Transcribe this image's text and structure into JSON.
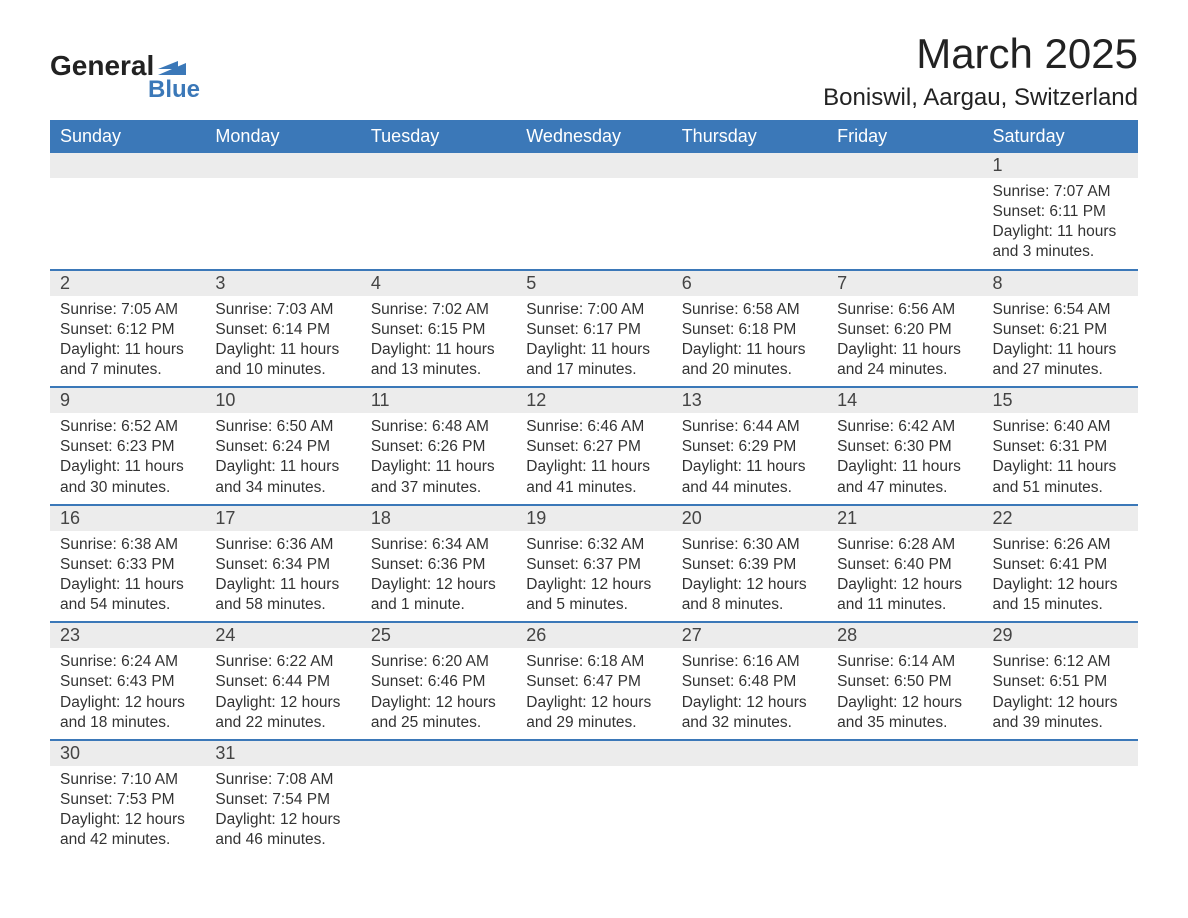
{
  "logo": {
    "brand1": "General",
    "brand2": "Blue",
    "flag_color": "#3b78b8"
  },
  "header": {
    "month": "March 2025",
    "location": "Boniswil, Aargau, Switzerland"
  },
  "calendar": {
    "day_headers": [
      "Sunday",
      "Monday",
      "Tuesday",
      "Wednesday",
      "Thursday",
      "Friday",
      "Saturday"
    ],
    "header_bg": "#3b78b8",
    "header_fg": "#ffffff",
    "row_separator_color": "#3b78b8",
    "daynum_bg": "#ececec",
    "weeks": [
      [
        null,
        null,
        null,
        null,
        null,
        null,
        {
          "n": "1",
          "sunrise": "Sunrise: 7:07 AM",
          "sunset": "Sunset: 6:11 PM",
          "dl1": "Daylight: 11 hours",
          "dl2": "and 3 minutes."
        }
      ],
      [
        {
          "n": "2",
          "sunrise": "Sunrise: 7:05 AM",
          "sunset": "Sunset: 6:12 PM",
          "dl1": "Daylight: 11 hours",
          "dl2": "and 7 minutes."
        },
        {
          "n": "3",
          "sunrise": "Sunrise: 7:03 AM",
          "sunset": "Sunset: 6:14 PM",
          "dl1": "Daylight: 11 hours",
          "dl2": "and 10 minutes."
        },
        {
          "n": "4",
          "sunrise": "Sunrise: 7:02 AM",
          "sunset": "Sunset: 6:15 PM",
          "dl1": "Daylight: 11 hours",
          "dl2": "and 13 minutes."
        },
        {
          "n": "5",
          "sunrise": "Sunrise: 7:00 AM",
          "sunset": "Sunset: 6:17 PM",
          "dl1": "Daylight: 11 hours",
          "dl2": "and 17 minutes."
        },
        {
          "n": "6",
          "sunrise": "Sunrise: 6:58 AM",
          "sunset": "Sunset: 6:18 PM",
          "dl1": "Daylight: 11 hours",
          "dl2": "and 20 minutes."
        },
        {
          "n": "7",
          "sunrise": "Sunrise: 6:56 AM",
          "sunset": "Sunset: 6:20 PM",
          "dl1": "Daylight: 11 hours",
          "dl2": "and 24 minutes."
        },
        {
          "n": "8",
          "sunrise": "Sunrise: 6:54 AM",
          "sunset": "Sunset: 6:21 PM",
          "dl1": "Daylight: 11 hours",
          "dl2": "and 27 minutes."
        }
      ],
      [
        {
          "n": "9",
          "sunrise": "Sunrise: 6:52 AM",
          "sunset": "Sunset: 6:23 PM",
          "dl1": "Daylight: 11 hours",
          "dl2": "and 30 minutes."
        },
        {
          "n": "10",
          "sunrise": "Sunrise: 6:50 AM",
          "sunset": "Sunset: 6:24 PM",
          "dl1": "Daylight: 11 hours",
          "dl2": "and 34 minutes."
        },
        {
          "n": "11",
          "sunrise": "Sunrise: 6:48 AM",
          "sunset": "Sunset: 6:26 PM",
          "dl1": "Daylight: 11 hours",
          "dl2": "and 37 minutes."
        },
        {
          "n": "12",
          "sunrise": "Sunrise: 6:46 AM",
          "sunset": "Sunset: 6:27 PM",
          "dl1": "Daylight: 11 hours",
          "dl2": "and 41 minutes."
        },
        {
          "n": "13",
          "sunrise": "Sunrise: 6:44 AM",
          "sunset": "Sunset: 6:29 PM",
          "dl1": "Daylight: 11 hours",
          "dl2": "and 44 minutes."
        },
        {
          "n": "14",
          "sunrise": "Sunrise: 6:42 AM",
          "sunset": "Sunset: 6:30 PM",
          "dl1": "Daylight: 11 hours",
          "dl2": "and 47 minutes."
        },
        {
          "n": "15",
          "sunrise": "Sunrise: 6:40 AM",
          "sunset": "Sunset: 6:31 PM",
          "dl1": "Daylight: 11 hours",
          "dl2": "and 51 minutes."
        }
      ],
      [
        {
          "n": "16",
          "sunrise": "Sunrise: 6:38 AM",
          "sunset": "Sunset: 6:33 PM",
          "dl1": "Daylight: 11 hours",
          "dl2": "and 54 minutes."
        },
        {
          "n": "17",
          "sunrise": "Sunrise: 6:36 AM",
          "sunset": "Sunset: 6:34 PM",
          "dl1": "Daylight: 11 hours",
          "dl2": "and 58 minutes."
        },
        {
          "n": "18",
          "sunrise": "Sunrise: 6:34 AM",
          "sunset": "Sunset: 6:36 PM",
          "dl1": "Daylight: 12 hours",
          "dl2": "and 1 minute."
        },
        {
          "n": "19",
          "sunrise": "Sunrise: 6:32 AM",
          "sunset": "Sunset: 6:37 PM",
          "dl1": "Daylight: 12 hours",
          "dl2": "and 5 minutes."
        },
        {
          "n": "20",
          "sunrise": "Sunrise: 6:30 AM",
          "sunset": "Sunset: 6:39 PM",
          "dl1": "Daylight: 12 hours",
          "dl2": "and 8 minutes."
        },
        {
          "n": "21",
          "sunrise": "Sunrise: 6:28 AM",
          "sunset": "Sunset: 6:40 PM",
          "dl1": "Daylight: 12 hours",
          "dl2": "and 11 minutes."
        },
        {
          "n": "22",
          "sunrise": "Sunrise: 6:26 AM",
          "sunset": "Sunset: 6:41 PM",
          "dl1": "Daylight: 12 hours",
          "dl2": "and 15 minutes."
        }
      ],
      [
        {
          "n": "23",
          "sunrise": "Sunrise: 6:24 AM",
          "sunset": "Sunset: 6:43 PM",
          "dl1": "Daylight: 12 hours",
          "dl2": "and 18 minutes."
        },
        {
          "n": "24",
          "sunrise": "Sunrise: 6:22 AM",
          "sunset": "Sunset: 6:44 PM",
          "dl1": "Daylight: 12 hours",
          "dl2": "and 22 minutes."
        },
        {
          "n": "25",
          "sunrise": "Sunrise: 6:20 AM",
          "sunset": "Sunset: 6:46 PM",
          "dl1": "Daylight: 12 hours",
          "dl2": "and 25 minutes."
        },
        {
          "n": "26",
          "sunrise": "Sunrise: 6:18 AM",
          "sunset": "Sunset: 6:47 PM",
          "dl1": "Daylight: 12 hours",
          "dl2": "and 29 minutes."
        },
        {
          "n": "27",
          "sunrise": "Sunrise: 6:16 AM",
          "sunset": "Sunset: 6:48 PM",
          "dl1": "Daylight: 12 hours",
          "dl2": "and 32 minutes."
        },
        {
          "n": "28",
          "sunrise": "Sunrise: 6:14 AM",
          "sunset": "Sunset: 6:50 PM",
          "dl1": "Daylight: 12 hours",
          "dl2": "and 35 minutes."
        },
        {
          "n": "29",
          "sunrise": "Sunrise: 6:12 AM",
          "sunset": "Sunset: 6:51 PM",
          "dl1": "Daylight: 12 hours",
          "dl2": "and 39 minutes."
        }
      ],
      [
        {
          "n": "30",
          "sunrise": "Sunrise: 7:10 AM",
          "sunset": "Sunset: 7:53 PM",
          "dl1": "Daylight: 12 hours",
          "dl2": "and 42 minutes."
        },
        {
          "n": "31",
          "sunrise": "Sunrise: 7:08 AM",
          "sunset": "Sunset: 7:54 PM",
          "dl1": "Daylight: 12 hours",
          "dl2": "and 46 minutes."
        },
        null,
        null,
        null,
        null,
        null
      ]
    ]
  }
}
